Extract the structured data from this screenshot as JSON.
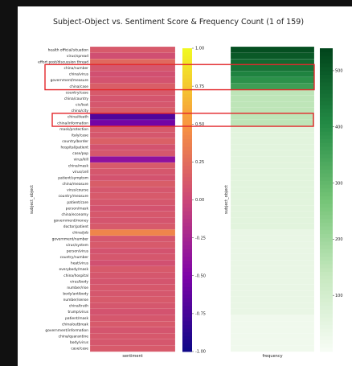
{
  "chart_data": {
    "title": "Subject-Object vs. Sentiment Score & Frequency Count (1 of 159)",
    "type": "heatmap",
    "categories": [
      "health official/situation",
      "virus/spread",
      "effort post/discussion thread",
      "china/number",
      "china/virus",
      "government/measure",
      "china/case",
      "country/case",
      "china/country",
      "cic/test",
      "china/city",
      "china/death",
      "china/information",
      "mask/protection",
      "italy/case",
      "country/border",
      "hospital/patient",
      "case/pop",
      "virus/kill",
      "china/mask",
      "virus/cell",
      "patient/symptom",
      "china/measure",
      "virus/course",
      "country/measure",
      "patient/care",
      "person/mask",
      "china/economy",
      "government/money",
      "doctor/patient",
      "china/job",
      "government/number",
      "virus/system",
      "person/virus",
      "country/number",
      "heat/virus",
      "everybody/mask",
      "china/hospital",
      "virus/body",
      "number/rise",
      "body/antibody",
      "number/sense",
      "china/truth",
      "trump/virus",
      "patient/mask",
      "china/outbreak",
      "government/information",
      "china/quarantine",
      "body/virus",
      "case/case"
    ],
    "sentiment_values": [
      0.12,
      0.05,
      0.22,
      0.1,
      0.06,
      0.08,
      0.15,
      0.12,
      0.09,
      0.1,
      0.14,
      -0.7,
      -0.55,
      0.12,
      0.1,
      0.16,
      0.08,
      0.1,
      -0.4,
      0.12,
      0.1,
      0.08,
      0.14,
      0.1,
      0.12,
      0.1,
      0.08,
      0.11,
      0.09,
      0.12,
      0.4,
      0.1,
      0.12,
      0.08,
      0.1,
      0.06,
      0.12,
      0.1,
      0.09,
      0.11,
      0.1,
      0.12,
      0.1,
      0.08,
      0.1,
      0.12,
      0.09,
      0.11,
      0.1,
      0.12
    ],
    "frequency_values": [
      520,
      500,
      470,
      450,
      420,
      390,
      360,
      150,
      150,
      150,
      150,
      150,
      150,
      60,
      60,
      60,
      60,
      60,
      60,
      60,
      60,
      60,
      60,
      60,
      60,
      60,
      60,
      60,
      60,
      60,
      40,
      40,
      40,
      40,
      40,
      40,
      40,
      40,
      40,
      40,
      40,
      40,
      40,
      40,
      20,
      20,
      20,
      20,
      20,
      20
    ],
    "ylabel": "subject_object",
    "sentiment_xlabel": "sentiment",
    "frequency_xlabel": "frequency",
    "sentiment_colorbar_ticks": [
      "1.00",
      "0.75",
      "0.50",
      "0.25",
      "0.00",
      "-0.25",
      "-0.50",
      "-0.75",
      "-1.00"
    ],
    "frequency_colorbar_ticks": [
      "500",
      "400",
      "300",
      "200",
      "100"
    ],
    "sentiment_range": [
      -1.0,
      1.0
    ],
    "frequency_range": [
      0,
      540
    ],
    "highlight_color": "#e3262a"
  }
}
